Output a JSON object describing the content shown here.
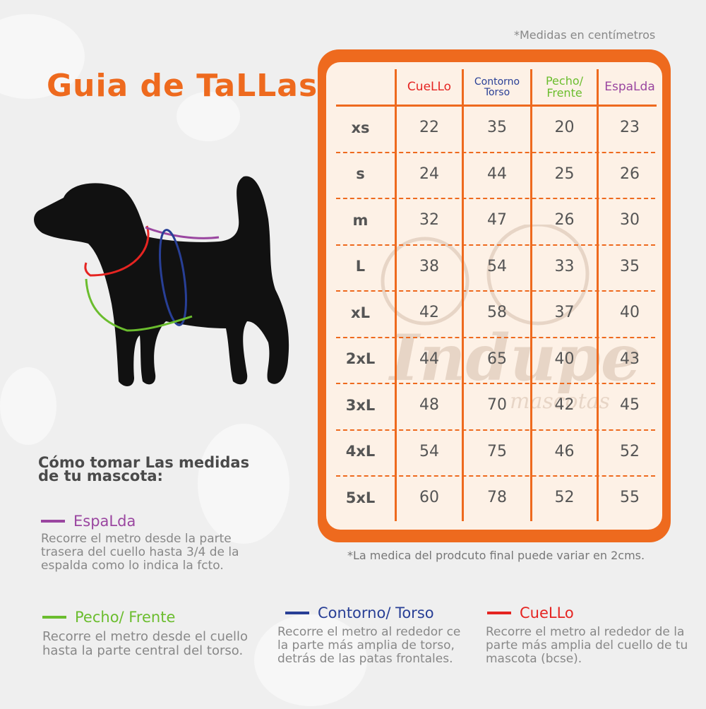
{
  "title": "Guia de TaLLas",
  "note_top": "*Medidas en centímetros",
  "note_bottom": "*La medica del prodcuto final puede variar en  2cms.",
  "watermark": {
    "brand": "Indupet",
    "sub": "mascotas"
  },
  "colors": {
    "accent": "#ee6a1e",
    "cuello": "#e52421",
    "torso": "#283f96",
    "pecho": "#6bbd2e",
    "espalda": "#9a46a0"
  },
  "table": {
    "headers": [
      {
        "label": "CueLLo",
        "color": "#e52421"
      },
      {
        "label": "Contorno Torso",
        "color": "#283f96"
      },
      {
        "label": "Pecho/ Frente",
        "color": "#6bbd2e"
      },
      {
        "label": "EspaLda",
        "color": "#9a46a0"
      }
    ],
    "rows": [
      {
        "size": "xs",
        "values": [
          "22",
          "35",
          "20",
          "23"
        ]
      },
      {
        "size": "s",
        "values": [
          "24",
          "44",
          "25",
          "26"
        ]
      },
      {
        "size": "m",
        "values": [
          "32",
          "47",
          "26",
          "30"
        ]
      },
      {
        "size": "L",
        "values": [
          "38",
          "54",
          "33",
          "35"
        ]
      },
      {
        "size": "xL",
        "values": [
          "42",
          "58",
          "37",
          "40"
        ]
      },
      {
        "size": "2xL",
        "values": [
          "44",
          "65",
          "40",
          "43"
        ]
      },
      {
        "size": "3xL",
        "values": [
          "48",
          "70",
          "42",
          "45"
        ]
      },
      {
        "size": "4xL",
        "values": [
          "54",
          "75",
          "46",
          "52"
        ]
      },
      {
        "size": "5xL",
        "values": [
          "60",
          "78",
          "52",
          "55"
        ]
      }
    ]
  },
  "howto_title": "Cómo tomar Las medidas de tu mascota:",
  "sections": {
    "espalda": {
      "title": "EspaLda",
      "desc": "Recorre el metro desde la parte trasera del cuello hasta 3/4 de la espalda como lo indica la fcto."
    },
    "pecho": {
      "title": "Pecho/ Frente",
      "desc": "Recorre el metro desde el cuello hasta la parte central del torso."
    },
    "torso": {
      "title": "Contorno/ Torso",
      "desc": "Recorre el metro al rededor ce la parte más amplia de torso, detrás de las patas frontales."
    },
    "cuello": {
      "title": "CueLLo",
      "desc": "Recorre el metro al rededor de la parte más amplia del cuello de tu mascota (bcse)."
    }
  }
}
